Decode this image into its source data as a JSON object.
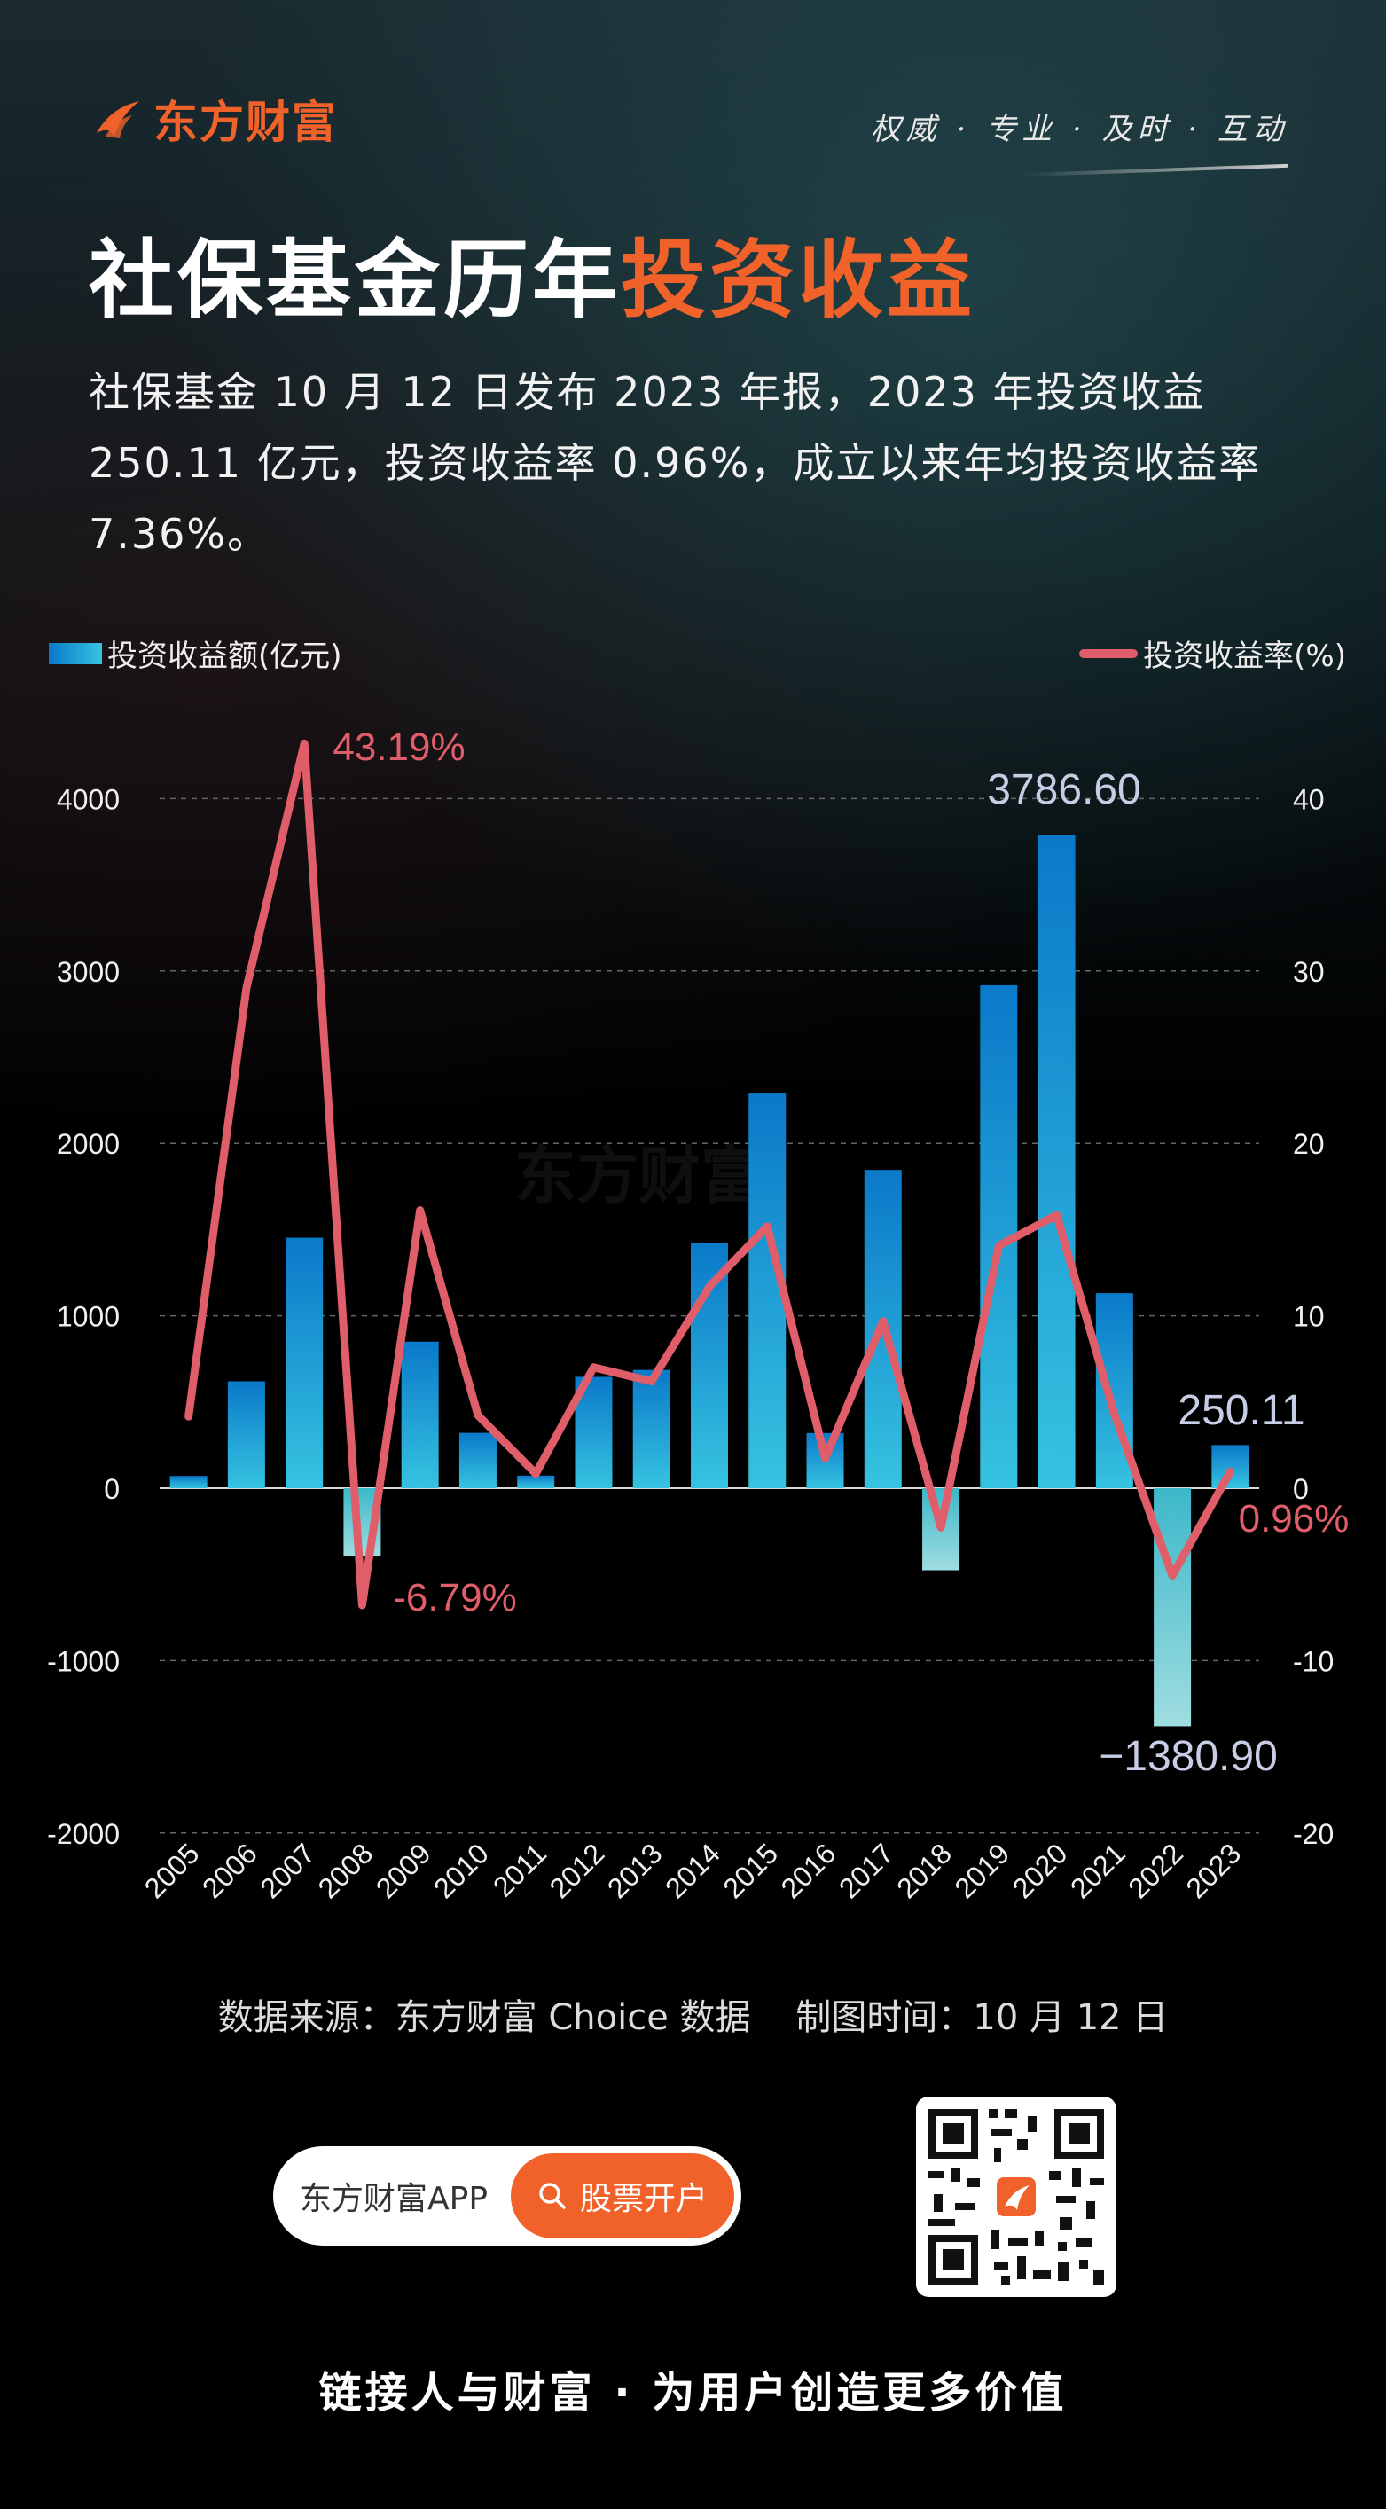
{
  "brand": {
    "logo_text": "东方财富",
    "slogan": "权威 · 专业 · 及时 · 互动"
  },
  "title": {
    "main": "社保基金历年",
    "highlight": "投资收益"
  },
  "intro": "社保基金 10 月 12 日发布 2023 年报，2023 年投资收益 250.11 亿元，投资收益率 0.96%，成立以来年均投资收益率 7.36%。",
  "colors": {
    "accent": "#f0622a",
    "line": "#e05d6a",
    "bar_top": "#0a79c9",
    "bar_bottom": "#36c3e0",
    "callout_bar": "#c8cde6"
  },
  "chart_data": {
    "type": "bar",
    "categories": [
      "2005",
      "2006",
      "2007",
      "2008",
      "2009",
      "2010",
      "2011",
      "2012",
      "2013",
      "2014",
      "2015",
      "2016",
      "2017",
      "2018",
      "2019",
      "2020",
      "2021",
      "2022",
      "2023"
    ],
    "series": [
      {
        "name": "投资收益额(亿元)",
        "type": "bar",
        "axis": "left",
        "values": [
          71,
          620,
          1453,
          -393,
          850,
          321,
          73,
          646,
          686,
          1424,
          2294,
          320,
          1846,
          -476,
          2917,
          3786.6,
          1131,
          -1380.9,
          250.11
        ]
      },
      {
        "name": "投资收益率(%)",
        "type": "line",
        "axis": "right",
        "values": [
          4.16,
          29.01,
          43.19,
          -6.79,
          16.12,
          4.23,
          0.84,
          7.01,
          6.2,
          11.69,
          15.19,
          1.73,
          9.68,
          -2.28,
          14.06,
          15.84,
          4.27,
          -5.07,
          0.96
        ]
      }
    ],
    "ylim_left": [
      -2000,
      4000
    ],
    "yticks_left": [
      "-2000",
      "-1000",
      "0",
      "1000",
      "2000",
      "3000",
      "4000"
    ],
    "ylim_right": [
      -20,
      40
    ],
    "yticks_right": [
      "-20",
      "-10",
      "0",
      "10",
      "20",
      "30",
      "40"
    ],
    "grid": true,
    "legend": [
      "top-left",
      "top-right"
    ],
    "annotations": {
      "bars": {
        "15": "3786.60",
        "17": "−1380.90",
        "18": "250.11"
      },
      "line": {
        "2": "43.19%",
        "3": "-6.79%",
        "18": "0.96%"
      }
    },
    "watermark": "东方财富"
  },
  "source": "数据来源：东方财富 Choice 数据    制图时间：10 月 12 日",
  "app": {
    "name": "东方财富APP",
    "button": "股票开户",
    "search_icon": "search-icon"
  },
  "footer": "链接人与财富 · 为用户创造更多价值"
}
